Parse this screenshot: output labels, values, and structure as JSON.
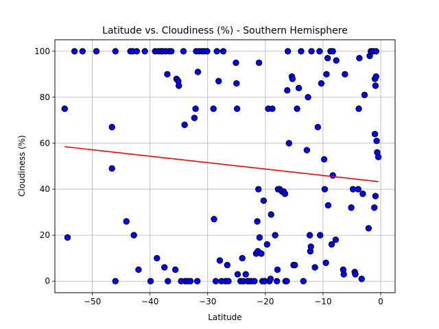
{
  "chart_data": {
    "type": "scatter",
    "title": "Latitude vs. Cloudiness (%) - Southern Hemisphere",
    "xlabel": "Latitude",
    "ylabel": "Cloudiness (%)",
    "xlim": [
      -56.5,
      2.5
    ],
    "ylim": [
      -5,
      105
    ],
    "xticks": [
      -50,
      -40,
      -30,
      -20,
      -10,
      0
    ],
    "yticks": [
      0,
      20,
      40,
      60,
      80,
      100
    ],
    "grid": true,
    "marker_color": "#0000ff",
    "marker_edge_color": "#000000",
    "regression_color": "#ff0000",
    "regression_line": {
      "x": [
        -54.8,
        -0.4
      ],
      "y": [
        58.5,
        43.3
      ]
    },
    "points": [
      [
        -54.8,
        75
      ],
      [
        -54.3,
        19
      ],
      [
        -53.1,
        100
      ],
      [
        -51.7,
        100
      ],
      [
        -49.3,
        100
      ],
      [
        -46.6,
        67
      ],
      [
        -46.6,
        49
      ],
      [
        -46.0,
        100
      ],
      [
        -46.0,
        0
      ],
      [
        -44.1,
        26
      ],
      [
        -43.4,
        100
      ],
      [
        -43.0,
        100
      ],
      [
        -42.8,
        20
      ],
      [
        -42.3,
        100
      ],
      [
        -42.0,
        5
      ],
      [
        -40.9,
        100
      ],
      [
        -39.9,
        0
      ],
      [
        -39.1,
        100
      ],
      [
        -38.8,
        10
      ],
      [
        -38.5,
        100
      ],
      [
        -38.1,
        100
      ],
      [
        -37.8,
        100
      ],
      [
        -37.5,
        6
      ],
      [
        -37.3,
        100
      ],
      [
        -37.0,
        90
      ],
      [
        -36.9,
        0
      ],
      [
        -36.7,
        100
      ],
      [
        -36.3,
        100
      ],
      [
        -35.6,
        5
      ],
      [
        -35.4,
        88
      ],
      [
        -35.1,
        87
      ],
      [
        -35.0,
        85
      ],
      [
        -34.6,
        0
      ],
      [
        -34.2,
        100
      ],
      [
        -34.0,
        68
      ],
      [
        -33.9,
        0
      ],
      [
        -33.5,
        0
      ],
      [
        -33.0,
        0
      ],
      [
        -32.3,
        71
      ],
      [
        -32.1,
        75
      ],
      [
        -32.0,
        100
      ],
      [
        -31.8,
        0
      ],
      [
        -31.7,
        91
      ],
      [
        -31.5,
        100
      ],
      [
        -31.0,
        100
      ],
      [
        -30.6,
        100
      ],
      [
        -30.1,
        100
      ],
      [
        -29.0,
        75
      ],
      [
        -28.9,
        27
      ],
      [
        -28.6,
        0
      ],
      [
        -28.4,
        100
      ],
      [
        -28.1,
        87
      ],
      [
        -27.9,
        9
      ],
      [
        -27.6,
        0
      ],
      [
        -27.3,
        100
      ],
      [
        -26.9,
        0
      ],
      [
        -26.6,
        7
      ],
      [
        -26.4,
        0
      ],
      [
        -25.1,
        95
      ],
      [
        -25.0,
        86
      ],
      [
        -24.9,
        75
      ],
      [
        -24.8,
        3
      ],
      [
        -24.3,
        0
      ],
      [
        -24.0,
        10
      ],
      [
        -23.8,
        0
      ],
      [
        -23.4,
        3
      ],
      [
        -23.1,
        0
      ],
      [
        -22.8,
        0
      ],
      [
        -22.4,
        0
      ],
      [
        -21.9,
        0
      ],
      [
        -21.6,
        12
      ],
      [
        -21.4,
        26
      ],
      [
        -21.3,
        13
      ],
      [
        -21.2,
        40
      ],
      [
        -21.1,
        95
      ],
      [
        -21.0,
        19
      ],
      [
        -20.7,
        12
      ],
      [
        -20.5,
        0
      ],
      [
        -20.3,
        35
      ],
      [
        -20.1,
        0
      ],
      [
        -19.7,
        16
      ],
      [
        -19.5,
        75
      ],
      [
        -19.3,
        0
      ],
      [
        -19.1,
        1
      ],
      [
        -19.0,
        29
      ],
      [
        -18.8,
        75
      ],
      [
        -18.3,
        20
      ],
      [
        -18.0,
        0
      ],
      [
        -17.9,
        5
      ],
      [
        -17.8,
        40
      ],
      [
        -17.5,
        40
      ],
      [
        -17.1,
        39
      ],
      [
        -16.8,
        39
      ],
      [
        -16.6,
        38
      ],
      [
        -16.5,
        0
      ],
      [
        -16.3,
        0
      ],
      [
        -16.2,
        83
      ],
      [
        -16.1,
        100
      ],
      [
        -15.9,
        60
      ],
      [
        -15.4,
        89
      ],
      [
        -15.3,
        88
      ],
      [
        -15.1,
        7
      ],
      [
        -14.9,
        7
      ],
      [
        -14.5,
        75
      ],
      [
        -14.2,
        84
      ],
      [
        -13.8,
        100
      ],
      [
        -13.4,
        0
      ],
      [
        -12.8,
        57
      ],
      [
        -12.6,
        80
      ],
      [
        -12.3,
        20
      ],
      [
        -12.2,
        13
      ],
      [
        -12.1,
        15
      ],
      [
        -12.0,
        100
      ],
      [
        -11.4,
        6
      ],
      [
        -10.9,
        67
      ],
      [
        -10.6,
        100
      ],
      [
        -10.5,
        20
      ],
      [
        -10.3,
        86
      ],
      [
        -9.8,
        53
      ],
      [
        -9.7,
        40
      ],
      [
        -9.5,
        8
      ],
      [
        -9.4,
        90
      ],
      [
        -9.2,
        97
      ],
      [
        -9.1,
        33
      ],
      [
        -8.7,
        100
      ],
      [
        -8.5,
        16
      ],
      [
        -8.3,
        46
      ],
      [
        -8.3,
        100
      ],
      [
        -7.8,
        18
      ],
      [
        -7.7,
        96
      ],
      [
        -6.5,
        5
      ],
      [
        -6.4,
        3
      ],
      [
        -6.2,
        90
      ],
      [
        -5.1,
        32
      ],
      [
        -4.8,
        40
      ],
      [
        -4.5,
        4
      ],
      [
        -4.4,
        3
      ],
      [
        -3.9,
        40
      ],
      [
        -3.8,
        75
      ],
      [
        -3.7,
        97
      ],
      [
        -3.3,
        1
      ],
      [
        -3.1,
        38
      ],
      [
        -2.8,
        81
      ],
      [
        -2.1,
        23
      ],
      [
        -1.9,
        98
      ],
      [
        -1.7,
        100
      ],
      [
        -1.4,
        100
      ],
      [
        -1.3,
        100
      ],
      [
        -1.1,
        32
      ],
      [
        -1.0,
        88
      ],
      [
        -1.0,
        64
      ],
      [
        -0.9,
        37
      ],
      [
        -0.9,
        85
      ],
      [
        -0.8,
        89
      ],
      [
        -0.8,
        100
      ],
      [
        -0.7,
        61
      ],
      [
        -0.6,
        56
      ],
      [
        -0.4,
        54
      ]
    ]
  }
}
